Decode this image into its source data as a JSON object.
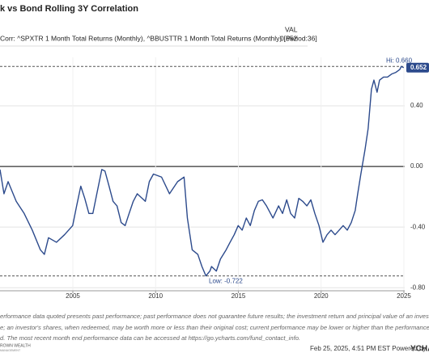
{
  "chart_data": {
    "type": "line",
    "title": "k vs Bond Rolling 3Y Correlation",
    "legend_header": "VAL",
    "last_value": 0.652,
    "high": {
      "value": 0.66,
      "label": "Hi: 0.660"
    },
    "low": {
      "value": -0.722,
      "label": "Low: -0.722"
    },
    "x": [
      2000.6,
      2000.84,
      2001.09,
      2001.58,
      2002.06,
      2002.55,
      2003.04,
      2003.28,
      2003.53,
      2004.01,
      2004.5,
      2004.99,
      2005.23,
      2005.48,
      2005.72,
      2005.97,
      2006.21,
      2006.45,
      2006.75,
      2006.94,
      2007.19,
      2007.43,
      2007.67,
      2007.92,
      2008.16,
      2008.4,
      2008.65,
      2008.89,
      2009.38,
      2009.62,
      2009.87,
      2010.36,
      2010.84,
      2011.33,
      2011.72,
      2011.92,
      2012.21,
      2012.55,
      2012.8,
      2013.04,
      2013.28,
      2013.38,
      2013.67,
      2013.92,
      2014.26,
      2014.5,
      2014.75,
      2014.99,
      2015.23,
      2015.48,
      2015.72,
      2015.97,
      2016.21,
      2016.45,
      2016.7,
      2017.09,
      2017.43,
      2017.67,
      2017.92,
      2018.16,
      2018.4,
      2018.65,
      2018.89,
      2019.14,
      2019.38,
      2019.62,
      2019.87,
      2020.11,
      2020.36,
      2020.6,
      2020.84,
      2021.09,
      2021.33,
      2021.58,
      2021.82,
      2022.06,
      2022.21,
      2022.4,
      2022.65,
      2022.84,
      2023.04,
      2023.19,
      2023.38,
      2023.53,
      2023.77,
      2024.01,
      2024.26,
      2024.5,
      2024.75,
      2024.84,
      2024.99
    ],
    "series": [
      {
        "name": "Corr: ^SPXTR 1 Month Total Returns (Monthly), ^BBUSTTR 1 Month Total Returns (Monthly) [Period:36]",
        "color": "#2c4a8c",
        "values": [
          -0.02,
          -0.18,
          -0.1,
          -0.23,
          -0.31,
          -0.42,
          -0.55,
          -0.58,
          -0.47,
          -0.5,
          -0.45,
          -0.39,
          -0.26,
          -0.13,
          -0.21,
          -0.31,
          -0.31,
          -0.18,
          -0.02,
          -0.03,
          -0.13,
          -0.23,
          -0.26,
          -0.37,
          -0.39,
          -0.31,
          -0.23,
          -0.18,
          -0.23,
          -0.1,
          -0.05,
          -0.07,
          -0.18,
          -0.1,
          -0.07,
          -0.34,
          -0.55,
          -0.58,
          -0.66,
          -0.722,
          -0.69,
          -0.66,
          -0.69,
          -0.61,
          -0.55,
          -0.5,
          -0.45,
          -0.39,
          -0.42,
          -0.34,
          -0.39,
          -0.29,
          -0.23,
          -0.22,
          -0.26,
          -0.34,
          -0.26,
          -0.31,
          -0.22,
          -0.31,
          -0.34,
          -0.21,
          -0.23,
          -0.26,
          -0.22,
          -0.31,
          -0.39,
          -0.5,
          -0.45,
          -0.42,
          -0.45,
          -0.42,
          -0.39,
          -0.42,
          -0.37,
          -0.29,
          -0.18,
          -0.05,
          0.11,
          0.25,
          0.51,
          0.57,
          0.49,
          0.57,
          0.59,
          0.59,
          0.61,
          0.62,
          0.64,
          0.66,
          0.652
        ]
      }
    ],
    "xlim": [
      2000.6,
      2025.05
    ],
    "xticks": [
      2005,
      2010,
      2015,
      2020,
      2025
    ],
    "ylim": [
      -0.82,
      0.72
    ],
    "yticks": [
      {
        "value": 0.4,
        "label": "0.40"
      },
      {
        "value": 0,
        "label": "0.00"
      },
      {
        "value": -0.4,
        "label": "-0.40"
      },
      {
        "value": -0.8,
        "label": "-0.80"
      }
    ],
    "grid": true,
    "zero_line": true
  },
  "footer": {
    "disclaimer": [
      "erformance data quoted presents past performance; past performance does not guarantee future results; the investment return and principal value of an investment w",
      "e; an investor's shares, when redeemed, may be worth more or less than their original cost; current performance may be lower or higher than the performance data",
      "d. The most recent month end performance data can be accessed at https://go.ycharts.com/fund_contact_info."
    ],
    "logo": "ROWN WEALTH",
    "logo_sub": "MANAGEMENT",
    "timestamp": "Feb 25, 2025, 4:51 PM EST  Powered by",
    "brand": "YCHAR"
  }
}
